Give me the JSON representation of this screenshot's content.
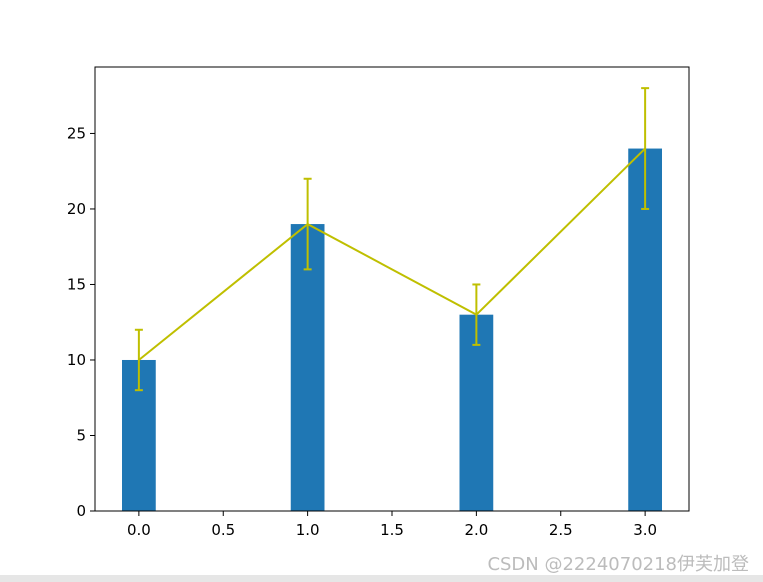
{
  "chart_data": {
    "type": "bar",
    "x": [
      0,
      1,
      2,
      3
    ],
    "values": [
      10,
      19,
      13,
      24
    ],
    "bar_color": "#1f77b4",
    "line": {
      "values": [
        10,
        19,
        13,
        24
      ],
      "yerr": [
        2,
        3,
        2,
        4
      ],
      "color": "#bfbf00"
    },
    "xlim": [
      -0.26,
      3.26
    ],
    "ylim": [
      0,
      29.4
    ],
    "xticks": [
      "0.0",
      "0.5",
      "1.0",
      "1.5",
      "2.0",
      "2.5",
      "3.0"
    ],
    "xtick_values": [
      0,
      0.5,
      1,
      1.5,
      2,
      2.5,
      3
    ],
    "yticks": [
      "0",
      "5",
      "10",
      "15",
      "20",
      "25"
    ],
    "ytick_values": [
      0,
      5,
      10,
      15,
      20,
      25
    ],
    "title": "",
    "xlabel": "",
    "ylabel": "",
    "grid": false
  },
  "watermark": "CSDN @2224070218伊芙加登"
}
